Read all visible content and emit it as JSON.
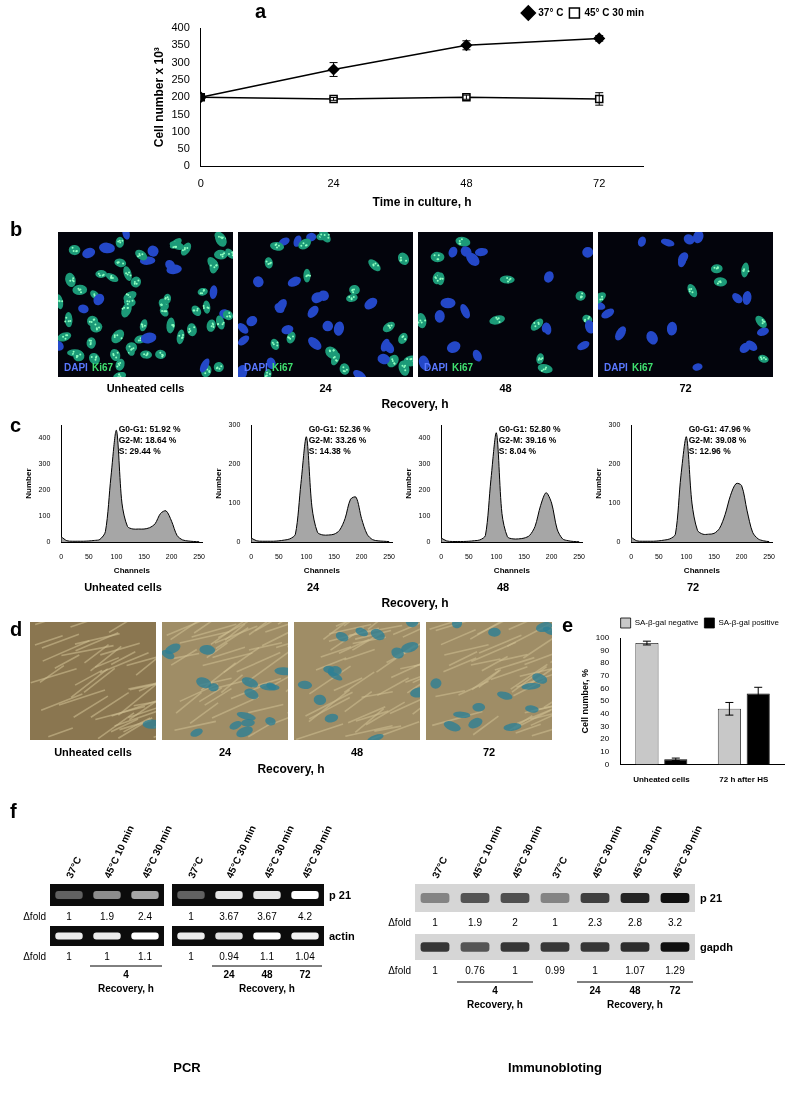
{
  "panel_labels": [
    "a",
    "b",
    "c",
    "d",
    "e",
    "f"
  ],
  "chart_data": [
    {
      "type": "line",
      "x_label": "Time in culture, h",
      "y_label": "Cell number x 10³",
      "x": [
        0,
        24,
        48,
        72
      ],
      "xlim": [
        0,
        80
      ],
      "xticks": [
        0,
        24,
        48,
        72
      ],
      "ylim": [
        0,
        400
      ],
      "yticks": [
        0,
        50,
        100,
        150,
        200,
        250,
        300,
        350,
        400
      ],
      "grid": false,
      "legend": "top-right",
      "series": [
        {
          "name": "37° C",
          "color": "#000000",
          "marker": "diamond",
          "values": [
            200,
            280,
            350,
            370
          ],
          "errors": [
            0,
            20,
            13,
            8
          ]
        },
        {
          "name": "45° C 30 min",
          "color": "#000000",
          "marker": "square-open",
          "values": [
            200,
            195,
            200,
            195
          ],
          "errors": [
            0,
            4,
            6,
            18
          ]
        }
      ]
    },
    {
      "type": "area",
      "caption": "Unheated cells",
      "x_label": "Channels",
      "y_label": "Number",
      "annotations": [
        "G0-G1: 51.92 %",
        "G2-M: 18.64 %",
        "S: 29.44 %"
      ],
      "x": [
        0,
        10,
        20,
        30,
        40,
        50,
        60,
        70,
        80,
        90,
        100,
        110,
        120,
        130,
        140,
        150,
        160,
        170,
        180,
        190,
        200,
        210,
        220,
        230,
        240,
        250
      ],
      "xlim": [
        0,
        256
      ],
      "xticks": [
        0,
        50,
        100,
        150,
        200,
        250
      ],
      "ylim": [
        0,
        450
      ],
      "yticks": [
        0,
        100,
        200,
        300,
        400
      ],
      "color": "#a6a6a6",
      "grid": false,
      "values": [
        20,
        5,
        3,
        3,
        3,
        4,
        6,
        10,
        40,
        250,
        430,
        150,
        60,
        50,
        50,
        50,
        55,
        70,
        110,
        120,
        80,
        25,
        8,
        4,
        2,
        1
      ]
    },
    {
      "type": "area",
      "caption": "24",
      "x_label": "Channels",
      "y_label": "Number",
      "annotations": [
        "G0-G1: 52.36 %",
        "G2-M: 33.26 %",
        "S: 14.38 %"
      ],
      "x": [
        0,
        10,
        20,
        30,
        40,
        50,
        60,
        70,
        80,
        90,
        100,
        110,
        120,
        130,
        140,
        150,
        160,
        170,
        180,
        190,
        200,
        210,
        220,
        230,
        240,
        250
      ],
      "xlim": [
        0,
        256
      ],
      "xticks": [
        0,
        50,
        100,
        150,
        200,
        250
      ],
      "ylim": [
        0,
        300
      ],
      "yticks": [
        0,
        100,
        200,
        300
      ],
      "color": "#a6a6a6",
      "grid": false,
      "values": [
        10,
        3,
        2,
        2,
        2,
        3,
        5,
        8,
        20,
        150,
        270,
        90,
        25,
        18,
        18,
        20,
        30,
        60,
        110,
        115,
        60,
        20,
        6,
        3,
        2,
        1
      ]
    },
    {
      "type": "area",
      "caption": "48",
      "x_label": "Channels",
      "y_label": "Number",
      "annotations": [
        "G0-G1: 52.80 %",
        "G2-M: 39.16 %",
        "S: 8.04 %"
      ],
      "x": [
        0,
        10,
        20,
        30,
        40,
        50,
        60,
        70,
        80,
        90,
        100,
        110,
        120,
        130,
        140,
        150,
        160,
        170,
        180,
        190,
        200,
        210,
        220,
        230,
        240,
        250
      ],
      "xlim": [
        0,
        256
      ],
      "xticks": [
        0,
        50,
        100,
        150,
        200,
        250
      ],
      "ylim": [
        0,
        450
      ],
      "yticks": [
        0,
        100,
        200,
        300,
        400
      ],
      "color": "#a6a6a6",
      "grid": false,
      "values": [
        15,
        4,
        2,
        2,
        2,
        3,
        5,
        8,
        25,
        240,
        420,
        110,
        20,
        12,
        12,
        15,
        25,
        60,
        140,
        190,
        150,
        50,
        12,
        5,
        2,
        1
      ]
    },
    {
      "type": "area",
      "caption": "72",
      "x_label": "Channels",
      "y_label": "Number",
      "annotations": [
        "G0-G1: 47.96 %",
        "G2-M: 39.08 %",
        "S: 12.96 %"
      ],
      "x": [
        0,
        10,
        20,
        30,
        40,
        50,
        60,
        70,
        80,
        90,
        100,
        110,
        120,
        130,
        140,
        150,
        160,
        170,
        180,
        190,
        200,
        210,
        220,
        230,
        240,
        250
      ],
      "xlim": [
        0,
        256
      ],
      "xticks": [
        0,
        50,
        100,
        150,
        200,
        250
      ],
      "ylim": [
        0,
        300
      ],
      "yticks": [
        0,
        100,
        200,
        300
      ],
      "color": "#a6a6a6",
      "grid": false,
      "values": [
        12,
        3,
        2,
        2,
        2,
        3,
        5,
        8,
        20,
        170,
        270,
        100,
        30,
        20,
        20,
        22,
        35,
        70,
        120,
        150,
        145,
        80,
        25,
        8,
        3,
        1
      ]
    },
    {
      "type": "bar",
      "y_label": "Cell number, %",
      "categories": [
        "Unheated cells",
        "72 h after HS"
      ],
      "ylim": [
        0,
        100
      ],
      "yticks": [
        0,
        10,
        20,
        30,
        40,
        50,
        60,
        70,
        80,
        90,
        100
      ],
      "grid": false,
      "legend": "top-right",
      "series": [
        {
          "name": "SA-β-gal negative",
          "color": "#c8c8c8",
          "values": [
            96,
            44
          ],
          "errors": [
            1.5,
            5
          ]
        },
        {
          "name": "SA-β-gal positive",
          "color": "#000000",
          "values": [
            4,
            56
          ],
          "errors": [
            1,
            5
          ]
        }
      ]
    }
  ],
  "panels": {
    "b": {
      "stain": [
        "DAPI",
        "Ki67"
      ],
      "captions": [
        "Unheated cells",
        "24",
        "48",
        "72"
      ],
      "x_title": "Recovery, h"
    },
    "c": {
      "x_title": "Recovery, h"
    },
    "d": {
      "captions": [
        "Unheated cells",
        "24",
        "48",
        "72"
      ],
      "x_title": "Recovery, h"
    },
    "f": {
      "fold_label": "Δfold",
      "recovery_title": "Recovery, h",
      "blots": [
        {
          "title": "PCR",
          "bands": [
            "p 21",
            "actin"
          ],
          "groups": [
            {
              "lanes": [
                "37°C",
                "45°C 10 min",
                "45°C 30 min"
              ],
              "folds": [
                [
                  1,
                  1.9,
                  2.4
                ],
                [
                  1,
                  1,
                  1.1
                ]
              ],
              "recovery": [
                "4"
              ]
            },
            {
              "lanes": [
                "37°C",
                "45°C 30 min",
                "45°C 30 min",
                "45°C 30 min"
              ],
              "folds": [
                [
                  1,
                  3.67,
                  3.67,
                  4.2
                ],
                [
                  1,
                  0.94,
                  1.1,
                  1.04
                ]
              ],
              "recovery": [
                "24",
                "48",
                "72"
              ]
            }
          ]
        },
        {
          "title": "Immunobloting",
          "bands": [
            "p 21",
            "gapdh"
          ],
          "groups": [
            {
              "lanes": [
                "37°C",
                "45°C 10 min",
                "45°C 30 min"
              ],
              "folds": [
                [
                  1,
                  1.9,
                  2
                ],
                [
                  1,
                  0.76,
                  1
                ]
              ],
              "recovery": [
                "4"
              ]
            },
            {
              "lanes": [
                "37°C",
                "45°C 30 min",
                "45°C 30 min",
                "45°C 30 min"
              ],
              "folds": [
                [
                  1,
                  2.3,
                  2.8,
                  3.2
                ],
                [
                  0.99,
                  1,
                  1.07,
                  1.29
                ]
              ],
              "recovery": [
                "24",
                "48",
                "72"
              ]
            }
          ]
        }
      ]
    }
  }
}
